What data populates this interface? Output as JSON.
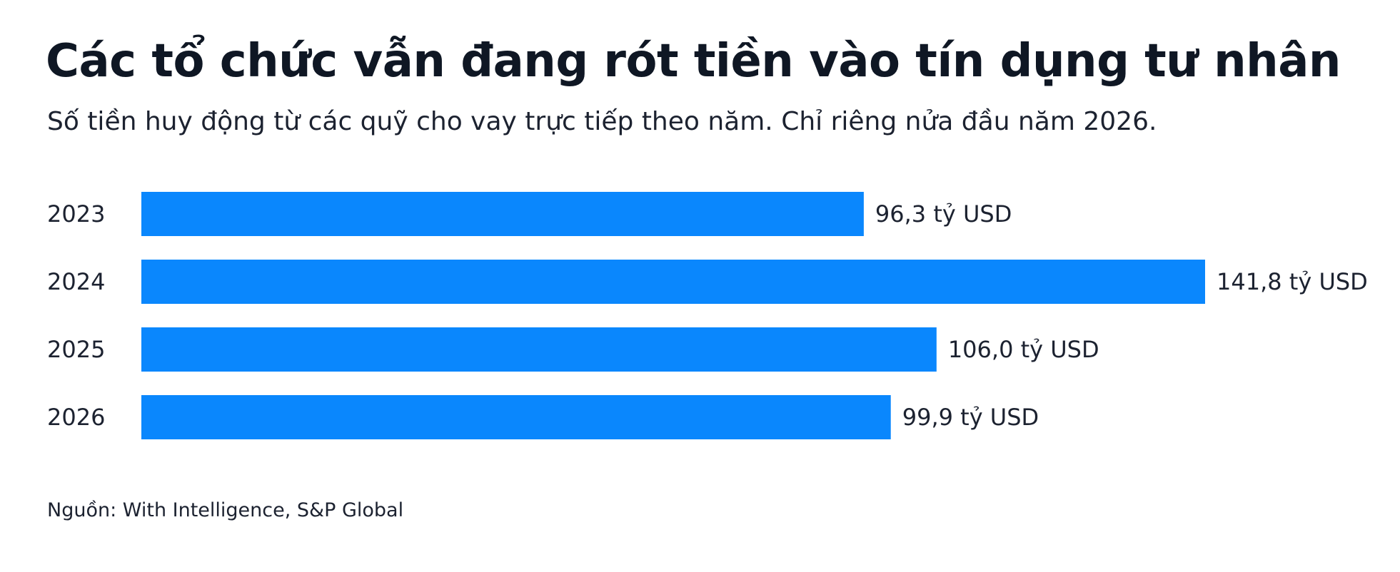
{
  "chart_data": {
    "type": "bar",
    "orientation": "horizontal",
    "title": "Các tổ chức vẫn đang rót tiền vào tín dụng tư nhân",
    "subtitle": "Số tiền huy động từ các quỹ cho vay trực tiếp theo năm. Chỉ riêng nửa đầu năm 2026.",
    "categories": [
      "2023",
      "2024",
      "2025",
      "2026"
    ],
    "values": [
      96.3,
      141.8,
      106.0,
      99.9
    ],
    "value_labels": [
      "96,3 tỷ USD",
      "141,8 tỷ USD",
      "106,0 tỷ USD",
      "99,9 tỷ USD"
    ],
    "unit": "tỷ USD",
    "xlim": [
      0,
      141.8
    ],
    "grid": false,
    "bar_color": "#0a87fd"
  },
  "source": "Nguồn: With Intelligence, S&P Global"
}
